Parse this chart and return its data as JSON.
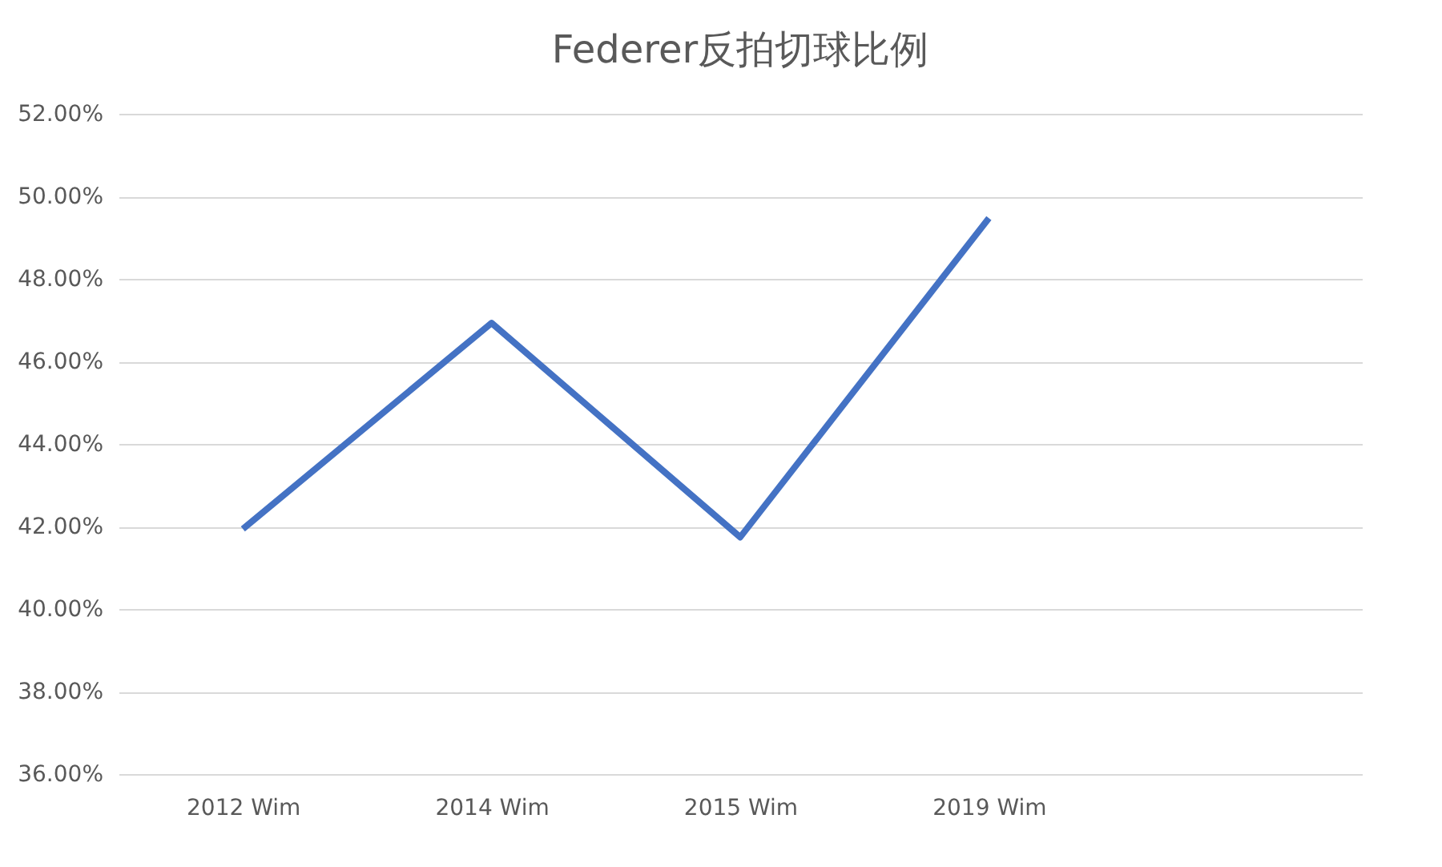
{
  "chart_data": {
    "type": "line",
    "title": "Federer反拍切球比例",
    "categories": [
      "2012 Wim",
      "2014 Wim",
      "2015 Wim",
      "2019 Wim",
      null
    ],
    "series": [
      {
        "color": "#4472c4",
        "values": [
          41.94,
          46.93,
          41.74,
          49.47,
          null
        ]
      }
    ],
    "ylim": [
      36,
      52
    ],
    "yticks": [
      {
        "value": 36,
        "label": "36.00%"
      },
      {
        "value": 38,
        "label": "38.00%"
      },
      {
        "value": 40,
        "label": "40.00%"
      },
      {
        "value": 42,
        "label": "42.00%"
      },
      {
        "value": 44,
        "label": "44.00%"
      },
      {
        "value": 46,
        "label": "46.00%"
      },
      {
        "value": 48,
        "label": "48.00%"
      },
      {
        "value": 50,
        "label": "50.00%"
      },
      {
        "value": 52,
        "label": "52.00%"
      }
    ],
    "grid": "y",
    "marker": "none",
    "line_style": "solid"
  }
}
